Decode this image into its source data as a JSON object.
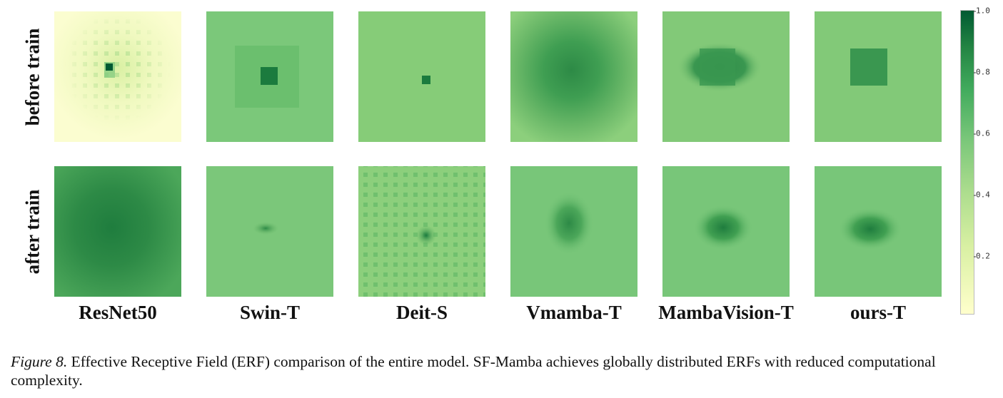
{
  "figure": {
    "row_labels": {
      "before": "before train",
      "after": "after train"
    },
    "models": [
      "ResNet50",
      "Swin-T",
      "Deit-S",
      "Vmamba-T",
      "MambaVision-T",
      "ours-T"
    ],
    "colorbar": {
      "ticks": [
        "1.0",
        "0.8",
        "0.6",
        "0.4",
        "0.2"
      ],
      "tick_values": [
        1.0,
        0.8,
        0.6,
        0.4,
        0.2
      ],
      "min": 0.0,
      "max": 1.0,
      "colormap": [
        "#ffffcc",
        "#d9f0a3",
        "#addd8e",
        "#78c679",
        "#41ab5d",
        "#238443",
        "#005a32"
      ]
    }
  },
  "caption": {
    "label": "Figure 8.",
    "text": " Effective Receptive Field (ERF) comparison of the entire model. SF-Mamba achieves globally distributed ERFs with reduced computational complexity."
  }
}
